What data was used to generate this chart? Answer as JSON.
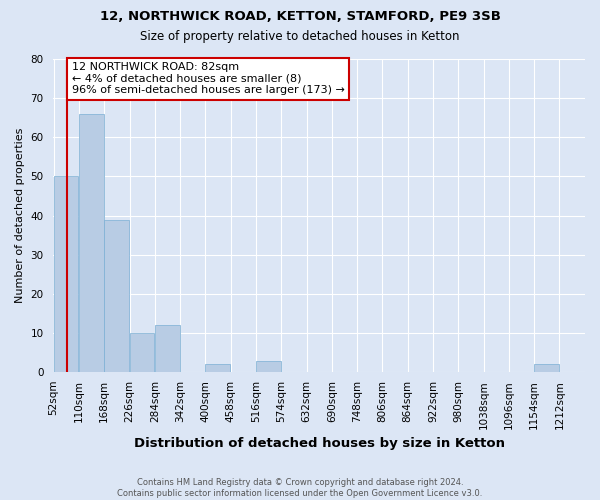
{
  "title1": "12, NORTHWICK ROAD, KETTON, STAMFORD, PE9 3SB",
  "title2": "Size of property relative to detached houses in Ketton",
  "xlabel": "Distribution of detached houses by size in Ketton",
  "ylabel": "Number of detached properties",
  "footnote": "Contains HM Land Registry data © Crown copyright and database right 2024.\nContains public sector information licensed under the Open Government Licence v3.0.",
  "bins": [
    52,
    110,
    168,
    226,
    284,
    342,
    400,
    458,
    516,
    574,
    632,
    690,
    748,
    806,
    864,
    922,
    980,
    1038,
    1096,
    1154,
    1212
  ],
  "values": [
    50,
    66,
    39,
    10,
    12,
    0,
    2,
    0,
    3,
    0,
    0,
    0,
    0,
    0,
    0,
    0,
    0,
    0,
    0,
    2,
    0
  ],
  "bar_color": "#b8cce4",
  "bar_edge_color": "#7bafd4",
  "property_size": 82,
  "marker_line_color": "#cc0000",
  "annotation_line1": "12 NORTHWICK ROAD: 82sqm",
  "annotation_line2": "← 4% of detached houses are smaller (8)",
  "annotation_line3": "96% of semi-detached houses are larger (173) →",
  "annotation_box_color": "#ffffff",
  "annotation_box_edge": "#cc0000",
  "ylim": [
    0,
    80
  ],
  "yticks": [
    0,
    10,
    20,
    30,
    40,
    50,
    60,
    70,
    80
  ],
  "bg_color": "#dce6f5",
  "grid_color": "#ffffff",
  "title_fontsize": 9.5,
  "subtitle_fontsize": 8.5,
  "axis_label_fontsize": 8,
  "tick_fontsize": 7.5,
  "annotation_fontsize": 8
}
